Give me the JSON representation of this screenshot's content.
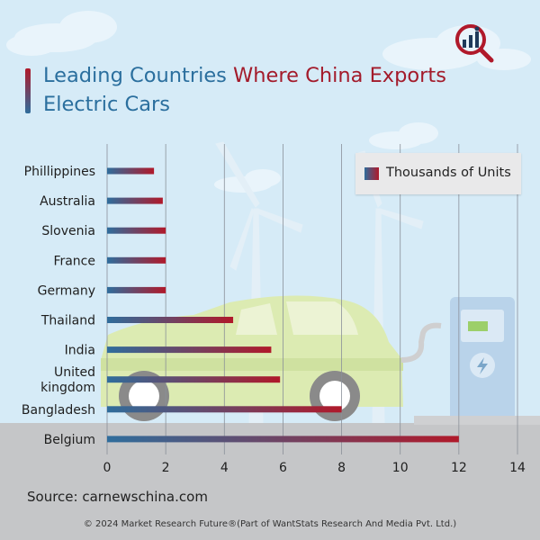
{
  "title_parts": [
    "Leading Countries ",
    "Where China Exports",
    " Electric Cars"
  ],
  "source": "Source: carnewschina.com",
  "copyright": "© 2024 Market Research Future®(Part of WantStats Research And Media Pvt. Ltd.)",
  "logo_icon": "magnifier-bar-chart-icon",
  "colors": {
    "bar_start": "#2f6d9c",
    "bar_end": "#b0192a",
    "title_blue": "#2b6f9e",
    "title_red": "#a31b2b",
    "background": "#d6ebf7"
  },
  "chart_data": {
    "type": "bar",
    "orientation": "horizontal",
    "title": "Leading Countries Where China Exports Electric Cars",
    "categories": [
      "Phillippines",
      "Australia",
      "Slovenia",
      "France",
      "Germany",
      "Thailand",
      "India",
      "United kingdom",
      "Bangladesh",
      "Belgium"
    ],
    "category_label_lines": [
      [
        "Phillippines"
      ],
      [
        "Australia"
      ],
      [
        "Slovenia"
      ],
      [
        "France"
      ],
      [
        "Germany"
      ],
      [
        "Thailand"
      ],
      [
        "India"
      ],
      [
        "United",
        "kingdom"
      ],
      [
        "Bangladesh"
      ],
      [
        "Belgium"
      ]
    ],
    "series": [
      {
        "name": "Thousands of Units",
        "values": [
          1.6,
          1.9,
          2.0,
          2.0,
          2.0,
          4.3,
          5.6,
          5.9,
          8.0,
          12.0
        ]
      }
    ],
    "xlim": [
      0,
      14
    ],
    "xticks": [
      0,
      2,
      4,
      6,
      8,
      10,
      12,
      14
    ],
    "xlabel": "",
    "ylabel": "",
    "grid": "vertical",
    "legend": "top-right"
  }
}
